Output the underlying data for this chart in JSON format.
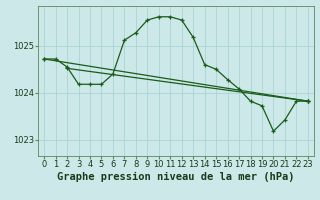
{
  "xlabel": "Graphe pression niveau de la mer (hPa)",
  "bg_color": "#cce8e8",
  "grid_color": "#aad4d4",
  "line_color": "#1a5c1a",
  "xlim": [
    -0.5,
    23.5
  ],
  "ylim": [
    1022.65,
    1025.85
  ],
  "yticks": [
    1023,
    1024,
    1025
  ],
  "xticks": [
    0,
    1,
    2,
    3,
    4,
    5,
    6,
    7,
    8,
    9,
    10,
    11,
    12,
    13,
    14,
    15,
    16,
    17,
    18,
    19,
    20,
    21,
    22,
    23
  ],
  "line1_x": [
    0,
    1,
    2,
    3,
    4,
    5,
    6,
    7,
    8,
    9,
    10,
    11,
    12,
    13,
    14,
    15,
    16,
    17,
    18,
    19,
    20,
    21,
    22,
    23
  ],
  "line1_y": [
    1024.72,
    1024.72,
    1024.55,
    1024.18,
    1024.18,
    1024.18,
    1024.4,
    1025.12,
    1025.28,
    1025.55,
    1025.62,
    1025.62,
    1025.55,
    1025.18,
    1024.6,
    1024.5,
    1024.28,
    1024.08,
    1023.82,
    1023.72,
    1023.18,
    1023.42,
    1023.82,
    1023.82
  ],
  "line2_x": [
    0,
    23
  ],
  "line2_y": [
    1024.72,
    1023.82
  ],
  "line3_x": [
    2,
    23
  ],
  "line3_y": [
    1024.52,
    1023.82
  ],
  "xlabel_fontsize": 7.5,
  "tick_fontsize": 6.0,
  "marker": "+"
}
